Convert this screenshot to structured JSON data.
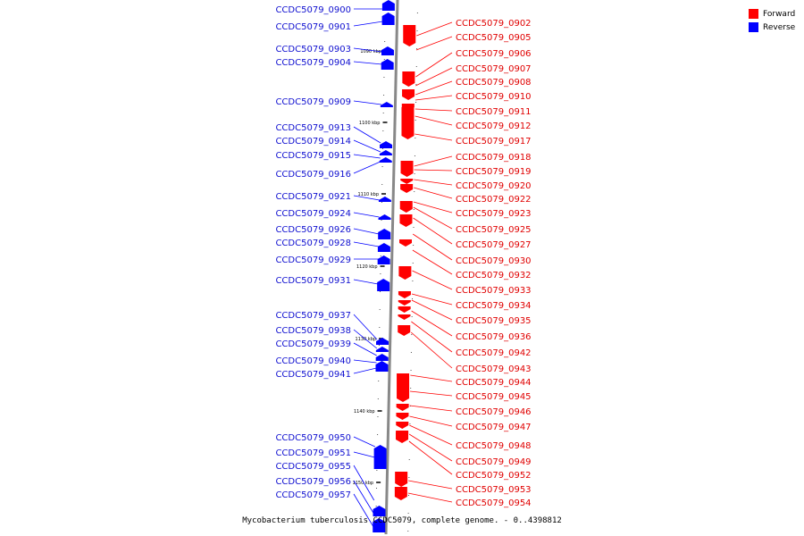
{
  "caption": "Mycobacterium tuberculosis CCDC5079, complete genome. - 0..4398812",
  "legend": [
    {
      "label": "Forward",
      "color": "#ff0000"
    },
    {
      "label": "Reverse",
      "color": "#0000ff"
    }
  ],
  "colors": {
    "forward": "#ff0000",
    "reverse": "#0000ff",
    "forward_text": "#e00000",
    "reverse_text": "#1010d0",
    "backbone": "#888888"
  },
  "ticks": [
    "1090 kbp",
    "1100 kbp",
    "1110 kbp",
    "1120 kbp",
    "1130 kbp",
    "1140 kbp",
    "1150 kbp"
  ],
  "forward_genes": [
    "CCDC5079_0902",
    "CCDC5079_0905",
    "CCDC5079_0906",
    "CCDC5079_0907",
    "CCDC5079_0908",
    "CCDC5079_0910",
    "CCDC5079_0911",
    "CCDC5079_0912",
    "CCDC5079_0917",
    "CCDC5079_0918",
    "CCDC5079_0919",
    "CCDC5079_0920",
    "CCDC5079_0922",
    "CCDC5079_0923",
    "CCDC5079_0925",
    "CCDC5079_0927",
    "CCDC5079_0930",
    "CCDC5079_0932",
    "CCDC5079_0933",
    "CCDC5079_0934",
    "CCDC5079_0935",
    "CCDC5079_0936",
    "CCDC5079_0942",
    "CCDC5079_0943",
    "CCDC5079_0944",
    "CCDC5079_0945",
    "CCDC5079_0946",
    "CCDC5079_0947",
    "CCDC5079_0948",
    "CCDC5079_0949",
    "CCDC5079_0952",
    "CCDC5079_0953",
    "CCDC5079_0954"
  ],
  "reverse_genes": [
    "CCDC5079_0900",
    "CCDC5079_0901",
    "CCDC5079_0903",
    "CCDC5079_0904",
    "CCDC5079_0909",
    "CCDC5079_0913",
    "CCDC5079_0914",
    "CCDC5079_0915",
    "CCDC5079_0916",
    "CCDC5079_0921",
    "CCDC5079_0924",
    "CCDC5079_0926",
    "CCDC5079_0928",
    "CCDC5079_0929",
    "CCDC5079_0931",
    "CCDC5079_0937",
    "CCDC5079_0938",
    "CCDC5079_0939",
    "CCDC5079_0940",
    "CCDC5079_0941",
    "CCDC5079_0950",
    "CCDC5079_0951",
    "CCDC5079_0955",
    "CCDC5079_0956",
    "CCDC5079_0957"
  ]
}
